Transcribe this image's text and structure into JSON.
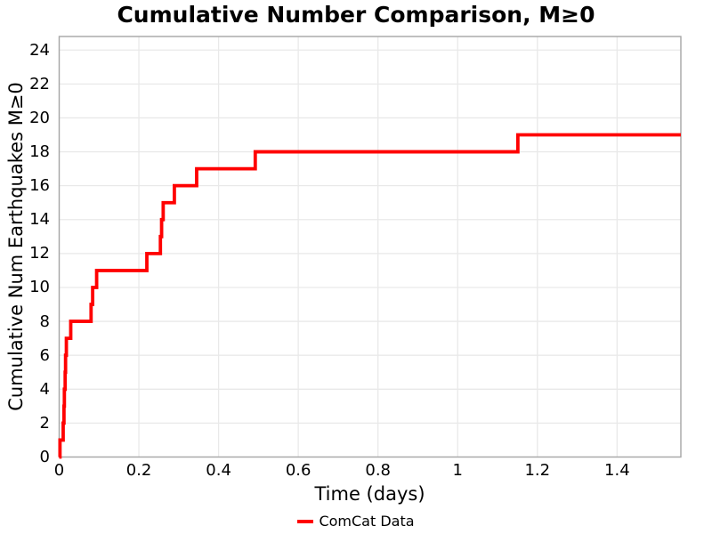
{
  "title": "Cumulative Number Comparison, M≥0",
  "axes": {
    "xlabel": "Time (days)",
    "ylabel": "Cumulative Num Earthquakes M≥0"
  },
  "legend": {
    "items": [
      {
        "label": "ComCat Data",
        "color": "#ff0000"
      }
    ]
  },
  "colors": {
    "line": "#ff0000",
    "grid": "#e9e9e9",
    "spine": "#a6a6a6",
    "text": "#000000",
    "background": "#ffffff"
  },
  "chart_data": {
    "type": "line",
    "subtype": "step-post",
    "title": "Cumulative Number Comparison, M≥0",
    "xlabel": "Time (days)",
    "ylabel": "Cumulative Num Earthquakes M≥0",
    "xlim": [
      0,
      1.56
    ],
    "ylim": [
      0,
      24.8
    ],
    "grid": true,
    "legend_position": "bottom-center-outside",
    "xticks": {
      "values": [
        0,
        0.2,
        0.4,
        0.6,
        0.8,
        1.0,
        1.2,
        1.4
      ],
      "labels": [
        "0",
        "0.2",
        "0.4",
        "0.6",
        "0.8",
        "1",
        "1.2",
        "1.4"
      ]
    },
    "yticks": {
      "values": [
        0,
        2,
        4,
        6,
        8,
        10,
        12,
        14,
        16,
        18,
        20,
        22,
        24
      ],
      "labels": [
        "0",
        "2",
        "4",
        "6",
        "8",
        "10",
        "12",
        "14",
        "16",
        "18",
        "20",
        "22",
        "24"
      ]
    },
    "series": [
      {
        "name": "ComCat Data",
        "color": "#ff0000",
        "start": [
          0,
          0
        ],
        "events": [
          [
            0.002,
            1
          ],
          [
            0.01,
            2
          ],
          [
            0.012,
            3
          ],
          [
            0.013,
            4
          ],
          [
            0.015,
            5
          ],
          [
            0.016,
            6
          ],
          [
            0.018,
            7
          ],
          [
            0.029,
            8
          ],
          [
            0.08,
            9
          ],
          [
            0.084,
            10
          ],
          [
            0.094,
            11
          ],
          [
            0.22,
            12
          ],
          [
            0.254,
            13
          ],
          [
            0.257,
            14
          ],
          [
            0.261,
            15
          ],
          [
            0.289,
            16
          ],
          [
            0.345,
            17
          ],
          [
            0.492,
            18
          ],
          [
            1.151,
            19
          ]
        ],
        "end": [
          1.56,
          19
        ]
      }
    ]
  }
}
